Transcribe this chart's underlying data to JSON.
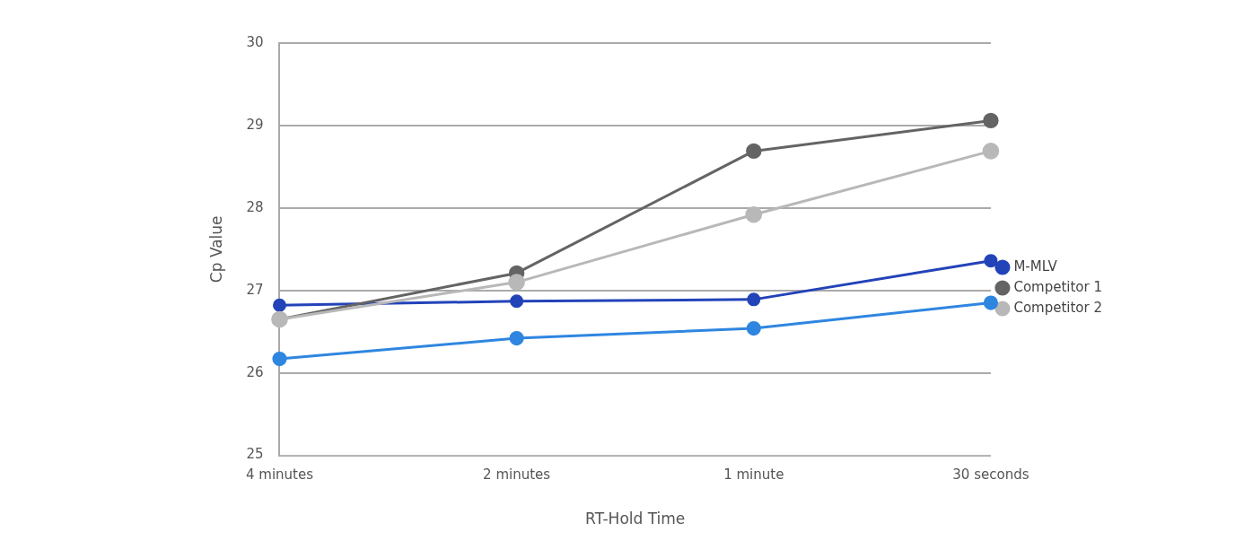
{
  "chart_data": {
    "type": "line",
    "xlabel": "RT-Hold Time",
    "ylabel": "Cp Value",
    "categories": [
      "4 minutes",
      "2 minutes",
      "1 minute",
      "30 seconds"
    ],
    "series": [
      {
        "name": "M-MLV",
        "color": "#2343b8",
        "values": [
          26.82,
          26.87,
          26.89,
          27.36
        ]
      },
      {
        "color": "#2f86e0",
        "values": [
          26.17,
          26.42,
          26.54,
          26.85
        ]
      },
      {
        "name": "Competitor 1",
        "color": "#646464",
        "values": [
          26.65,
          27.21,
          28.69,
          29.06
        ]
      },
      {
        "name": "Competitor 2",
        "color": "#b8b8b8",
        "values": [
          26.65,
          27.1,
          27.92,
          28.69
        ]
      }
    ],
    "ylim": [
      25,
      30
    ],
    "yticks": [
      25,
      26,
      27,
      28,
      29,
      30
    ],
    "grid": "y",
    "legend": "right",
    "marker": "circle",
    "line_style": "solid"
  }
}
